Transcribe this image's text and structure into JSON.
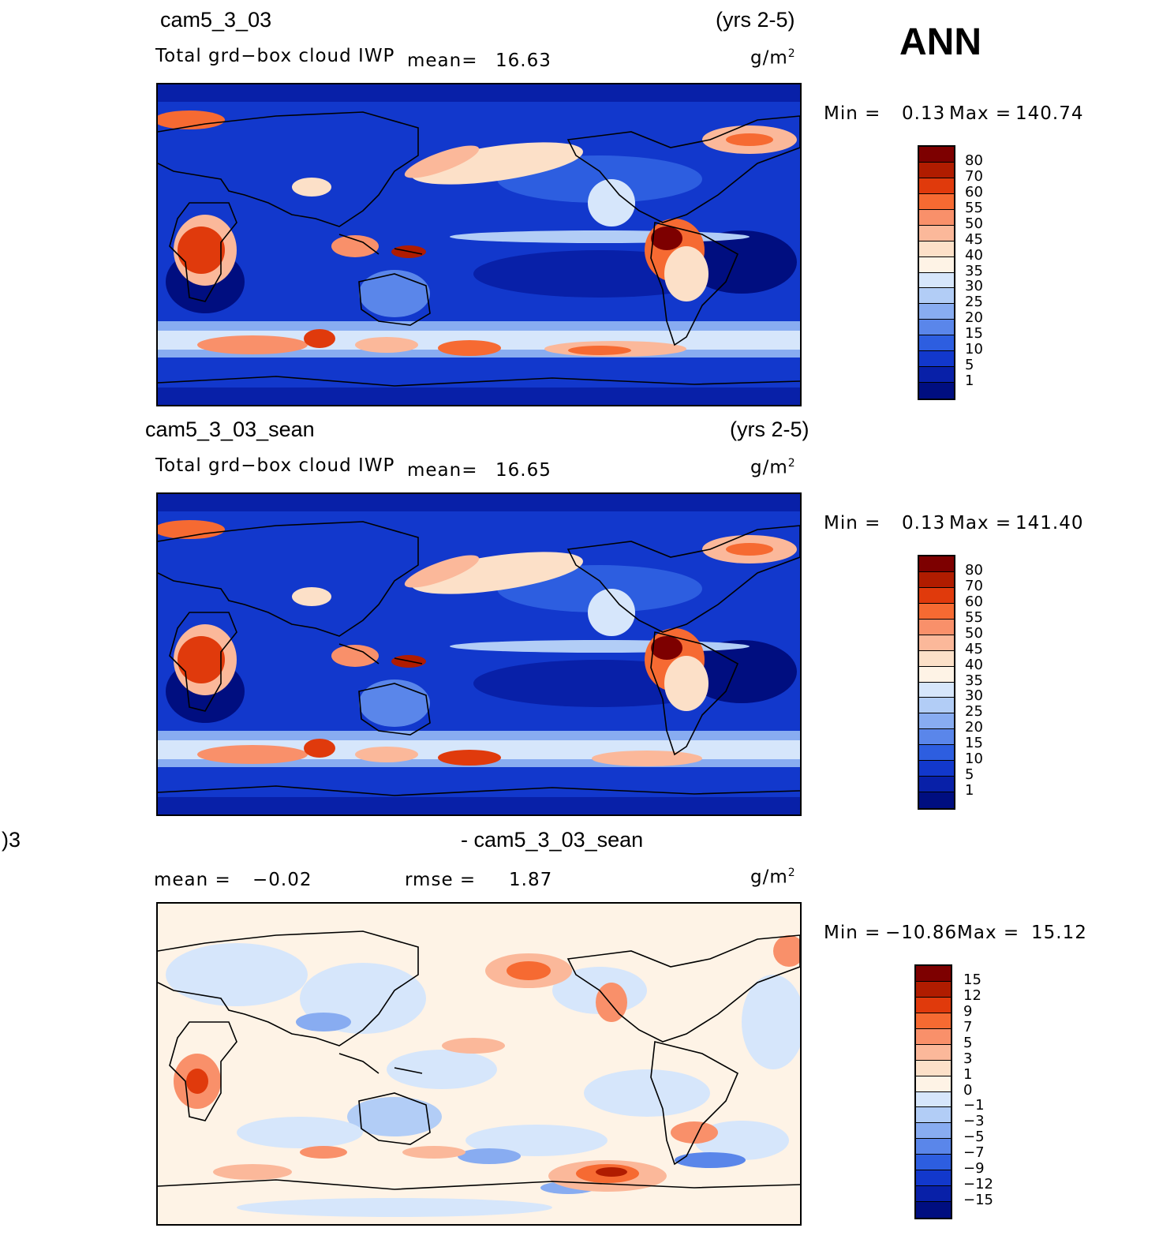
{
  "season": "ANN",
  "units_label": "g/m",
  "units_sup": "2",
  "panels": [
    {
      "case": "cam5_3_03",
      "years": "(yrs 2-5)",
      "variable": "Total grd−box cloud IWP",
      "mean_label": "mean=",
      "mean_value": "16.63",
      "min_label": "Min =",
      "min_value": "0.13",
      "max_label": "Max =",
      "max_value": "140.74",
      "colorbar_labels": [
        "80",
        "70",
        "60",
        "55",
        "50",
        "45",
        "40",
        "35",
        "30",
        "25",
        "20",
        "15",
        "10",
        "5",
        "1"
      ]
    },
    {
      "case": "cam5_3_03_sean",
      "years": "(yrs 2-5)",
      "variable": "Total grd−box cloud IWP",
      "mean_label": "mean=",
      "mean_value": "16.65",
      "min_label": "Min =",
      "min_value": "0.13",
      "max_label": "Max =",
      "max_value": "141.40",
      "colorbar_labels": [
        "80",
        "70",
        "60",
        "55",
        "50",
        "45",
        "40",
        "35",
        "30",
        "25",
        "20",
        "15",
        "10",
        "5",
        "1"
      ]
    },
    {
      "case_left": ")3",
      "case": "- cam5_3_03_sean",
      "mean_label": "mean =",
      "mean_value": "−0.02",
      "rmse_label": "rmse =",
      "rmse_value": "1.87",
      "min_label": "Min =",
      "min_value": "−10.86",
      "max_label": "Max =",
      "max_value": "15.12",
      "colorbar_labels": [
        "15",
        "12",
        "9",
        "7",
        "5",
        "3",
        "1",
        "0",
        "−1",
        "−3",
        "−5",
        "−7",
        "−9",
        "−12",
        "−15"
      ]
    }
  ],
  "colors": {
    "field_scale": [
      "#7d0000",
      "#b01c00",
      "#e03a0c",
      "#f66a32",
      "#f9906a",
      "#fbb89a",
      "#fce0c8",
      "#fef3e6",
      "#d6e6fb",
      "#b2cdf6",
      "#88acf1",
      "#5a86ea",
      "#2d5ee0",
      "#1238cc",
      "#0820a8",
      "#000e80"
    ],
    "diff_scale": [
      "#7d0000",
      "#b01c00",
      "#e03a0c",
      "#f66a32",
      "#f9906a",
      "#fbb89a",
      "#fce0c8",
      "#fef3e6",
      "#d6e6fb",
      "#b2cdf6",
      "#88acf1",
      "#5a86ea",
      "#2d5ee0",
      "#1238cc",
      "#0820a8",
      "#000e80"
    ]
  }
}
